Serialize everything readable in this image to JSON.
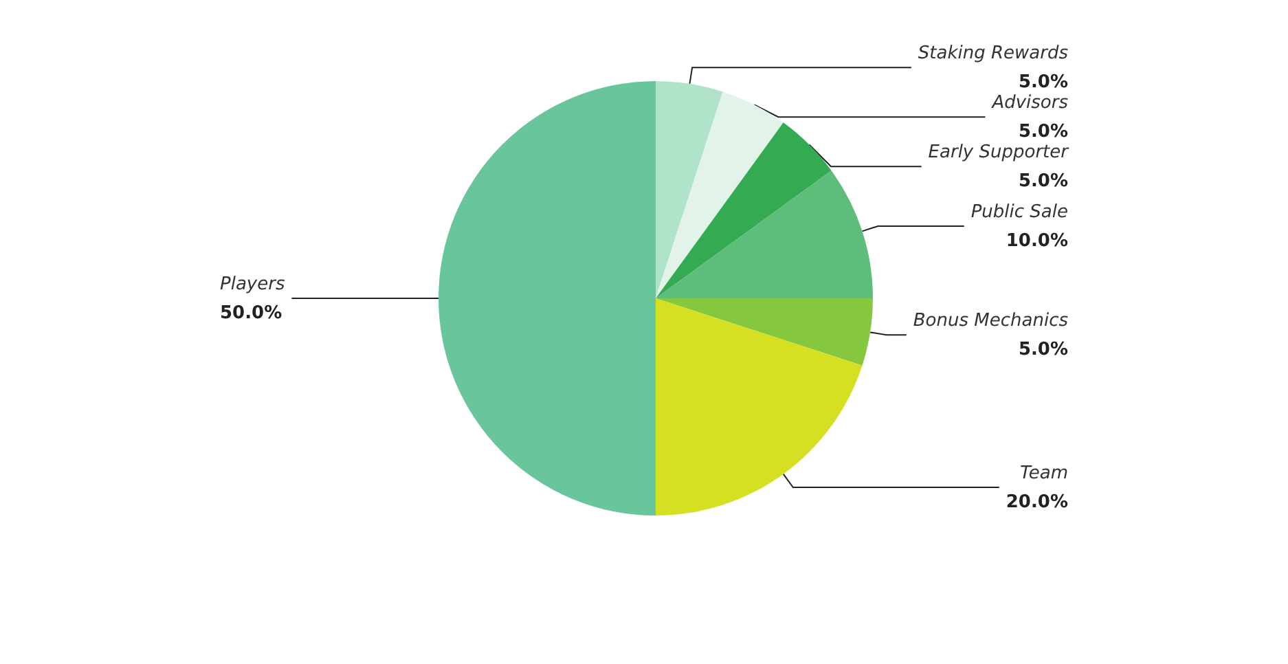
{
  "chart_data": {
    "type": "pie",
    "categories": [
      "Staking Rewards",
      "Advisors",
      "Early Supporter",
      "Public Sale",
      "Bonus Mechanics",
      "Team",
      "Players"
    ],
    "values": [
      5,
      5,
      5,
      10,
      5,
      20,
      50
    ],
    "value_labels": [
      "5.0%",
      "5.0%",
      "5.0%",
      "10.0%",
      "5.0%",
      "20.0%",
      "50.0%"
    ],
    "colors": [
      "#b1e3cb",
      "#e2f4ea",
      "#34ab52",
      "#5dbd7a",
      "#86c740",
      "#d5e022",
      "#69c59b"
    ]
  }
}
